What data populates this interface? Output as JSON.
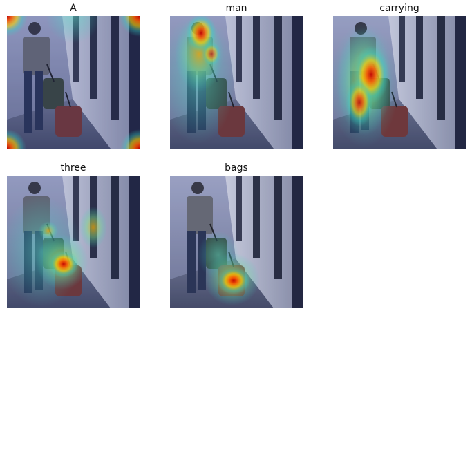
{
  "panels": [
    {
      "word": "A",
      "heat": "corners"
    },
    {
      "word": "man",
      "heat": "upper-body"
    },
    {
      "word": "carrying",
      "heat": "torso-and-bag"
    },
    {
      "word": "three",
      "heat": "bag-middle"
    },
    {
      "word": "bags",
      "heat": "bag-bottom"
    }
  ],
  "colors": {
    "heat_hot": "#d60000",
    "heat_warm": "#ffd400",
    "heat_cool": "#33d6c8",
    "tint_blue": "#1b2f88"
  }
}
